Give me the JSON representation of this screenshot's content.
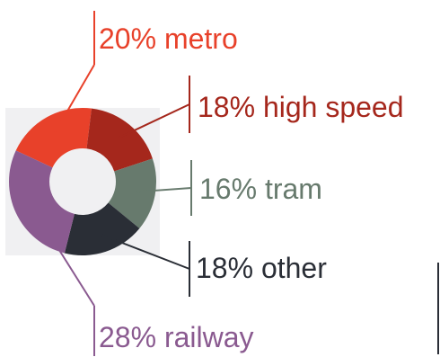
{
  "chart_data": {
    "type": "pie",
    "donut": true,
    "legend": "none",
    "categories": [
      "metro",
      "high speed",
      "tram",
      "other",
      "railway"
    ],
    "values": [
      20,
      18,
      16,
      18,
      28
    ],
    "labels": [
      "20% metro",
      "18% high speed",
      "16% tram",
      "18% other",
      "28% railway"
    ],
    "colors": [
      "#e8412a",
      "#a5271c",
      "#677a6d",
      "#2a2e36",
      "#8a5a90"
    ],
    "background_color": "#f0f0f2"
  }
}
